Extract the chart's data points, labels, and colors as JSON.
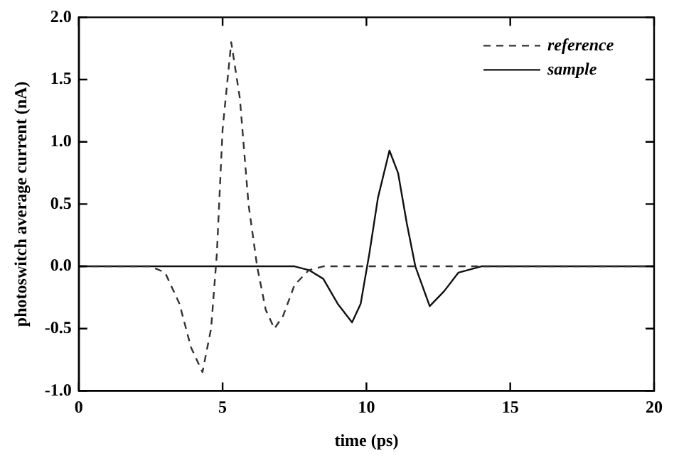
{
  "chart_data": {
    "type": "line",
    "xlabel": "time (ps)",
    "ylabel": "photoswitch average current (nA)",
    "xlim": [
      0,
      20
    ],
    "xticks": [
      0,
      5,
      10,
      15,
      20
    ],
    "ylim": [
      -1,
      2
    ],
    "yticks": [
      {
        "value": -1,
        "label": "-1.0"
      },
      {
        "value": -0.5,
        "label": "-0.5"
      },
      {
        "value": 0,
        "label": "0.0"
      },
      {
        "value": 0.5,
        "label": "0.5"
      },
      {
        "value": 1,
        "label": "1.0"
      },
      {
        "value": 1.5,
        "label": "1.5"
      },
      {
        "value": 2,
        "label": "2.0"
      }
    ],
    "grid": false,
    "legend": "top right",
    "marker": "none",
    "series": [
      {
        "name": "reference",
        "color": "#333333",
        "line_style": "dashed",
        "x": [
          0,
          2.5,
          3.0,
          3.5,
          3.9,
          4.3,
          4.6,
          4.8,
          5.0,
          5.3,
          5.6,
          5.9,
          6.2,
          6.5,
          6.8,
          7.1,
          7.5,
          8.0,
          8.5,
          10,
          15,
          20
        ],
        "values": [
          0,
          0,
          -0.05,
          -0.3,
          -0.65,
          -0.85,
          -0.5,
          0.1,
          1.1,
          1.8,
          1.35,
          0.5,
          0,
          -0.35,
          -0.5,
          -0.4,
          -0.15,
          -0.03,
          0,
          0,
          0,
          0
        ]
      },
      {
        "name": "sample",
        "color": "#111111",
        "line_style": "solid",
        "x": [
          0,
          7.5,
          8.0,
          8.5,
          9.0,
          9.5,
          9.8,
          10.1,
          10.4,
          10.8,
          11.1,
          11.4,
          11.7,
          12.2,
          12.7,
          13.2,
          14,
          20
        ],
        "values": [
          0,
          0,
          -0.03,
          -0.1,
          -0.3,
          -0.45,
          -0.3,
          0.1,
          0.55,
          0.93,
          0.75,
          0.35,
          0,
          -0.32,
          -0.2,
          -0.05,
          0,
          0
        ]
      }
    ]
  }
}
